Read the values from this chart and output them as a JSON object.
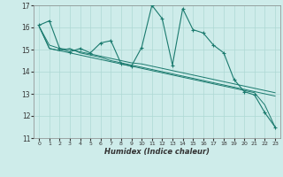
{
  "xlabel": "Humidex (Indice chaleur)",
  "bg_color": "#ceecea",
  "grid_color": "#aed8d4",
  "line_color": "#1a7a6e",
  "xlim": [
    -0.5,
    23.5
  ],
  "ylim": [
    11,
    17
  ],
  "xticks": [
    0,
    1,
    2,
    3,
    4,
    5,
    6,
    7,
    8,
    9,
    10,
    11,
    12,
    13,
    14,
    15,
    16,
    17,
    18,
    19,
    20,
    21,
    22,
    23
  ],
  "yticks": [
    11,
    12,
    13,
    14,
    15,
    16,
    17
  ],
  "series_main": [
    16.1,
    16.3,
    15.05,
    14.9,
    15.05,
    14.85,
    15.3,
    15.4,
    14.35,
    14.25,
    15.1,
    17.0,
    16.4,
    14.3,
    16.85,
    15.9,
    15.75,
    15.2,
    14.85,
    13.65,
    13.1,
    12.95,
    12.15,
    11.5
  ],
  "series_linear": [
    [
      16.05,
      15.05,
      14.95,
      15.05,
      14.85,
      14.75,
      14.65,
      14.5,
      14.4,
      14.3,
      14.2,
      14.1,
      14.0,
      13.9,
      13.8,
      13.7,
      13.6,
      13.5,
      13.4,
      13.3,
      13.2,
      13.1,
      13.0,
      12.9
    ],
    [
      16.05,
      15.2,
      15.05,
      15.0,
      14.9,
      14.8,
      14.7,
      14.6,
      14.5,
      14.4,
      14.35,
      14.25,
      14.15,
      14.05,
      13.95,
      13.85,
      13.75,
      13.65,
      13.55,
      13.45,
      13.35,
      13.25,
      13.15,
      13.05
    ],
    [
      16.05,
      15.05,
      14.95,
      14.85,
      14.75,
      14.65,
      14.55,
      14.45,
      14.35,
      14.25,
      14.15,
      14.05,
      13.95,
      13.85,
      13.75,
      13.65,
      13.55,
      13.45,
      13.35,
      13.25,
      13.15,
      13.05,
      12.5,
      11.5
    ]
  ]
}
